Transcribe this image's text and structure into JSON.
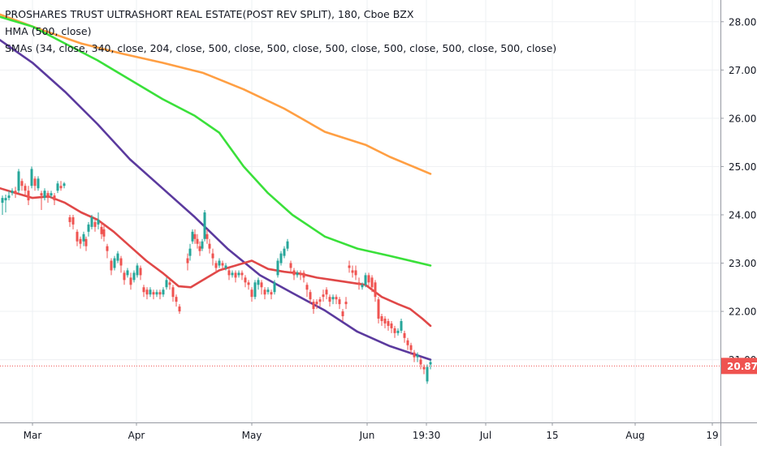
{
  "chart_data": {
    "type": "candlestick",
    "title": "PROSHARES TRUST ULTRASHORT REAL ESTATE(POST REV SPLIT), 180, Cboe BZX",
    "indicator_labels": [
      "HMA (500, close)",
      "SMAs (34, close, 340, close, 204, close, 500, close, 500, close, 500, close, 500, close, 500, close, 500, close)"
    ],
    "y_ticks": [
      "28.00",
      "27.00",
      "26.00",
      "25.00",
      "24.00",
      "23.00",
      "22.00",
      "21.00"
    ],
    "ylim": [
      19.7,
      28.45
    ],
    "x_ticks": [
      {
        "label": "Mar",
        "t": 40
      },
      {
        "label": "Apr",
        "t": 168
      },
      {
        "label": "May",
        "t": 310
      },
      {
        "label": "Jun",
        "t": 452
      },
      {
        "label": "19:30",
        "t": 525
      },
      {
        "label": "Jul",
        "t": 598
      },
      {
        "label": "15",
        "t": 680
      },
      {
        "label": "Aug",
        "t": 782
      },
      {
        "label": "19",
        "t": 877
      }
    ],
    "last_price": 20.87,
    "last_price_label": "20.87",
    "colors": {
      "up": "#26a69a",
      "down": "#ef5350",
      "hma": "#5b3a9e",
      "sma_orange": "#ff9f43",
      "sma_green": "#3ae03a",
      "sma_red": "#e04848",
      "price_line": "#ef5350",
      "grid": "#eef0f3",
      "axis_text": "#131722"
    },
    "series": [
      {
        "kind": "line",
        "color_key": "sma_orange",
        "points": [
          [
            0,
            28.15
          ],
          [
            50,
            27.84
          ],
          [
            100,
            27.55
          ],
          [
            150,
            27.34
          ],
          [
            200,
            27.15
          ],
          [
            250,
            26.94
          ],
          [
            300,
            26.6
          ],
          [
            350,
            26.2
          ],
          [
            400,
            25.72
          ],
          [
            450,
            25.45
          ],
          [
            480,
            25.2
          ],
          [
            530,
            24.85
          ]
        ]
      },
      {
        "kind": "line",
        "color_key": "sma_green",
        "points": [
          [
            0,
            28.1
          ],
          [
            40,
            27.9
          ],
          [
            80,
            27.55
          ],
          [
            120,
            27.2
          ],
          [
            160,
            26.8
          ],
          [
            200,
            26.4
          ],
          [
            240,
            26.05
          ],
          [
            270,
            25.7
          ],
          [
            300,
            25.0
          ],
          [
            330,
            24.45
          ],
          [
            360,
            24.0
          ],
          [
            400,
            23.55
          ],
          [
            440,
            23.3
          ],
          [
            480,
            23.15
          ],
          [
            530,
            22.95
          ]
        ]
      },
      {
        "kind": "line",
        "color_key": "hma",
        "points": [
          [
            0,
            27.62
          ],
          [
            40,
            27.15
          ],
          [
            80,
            26.55
          ],
          [
            120,
            25.88
          ],
          [
            160,
            25.15
          ],
          [
            200,
            24.55
          ],
          [
            240,
            23.95
          ],
          [
            280,
            23.3
          ],
          [
            320,
            22.75
          ],
          [
            360,
            22.38
          ],
          [
            400,
            22.02
          ],
          [
            440,
            21.58
          ],
          [
            480,
            21.28
          ],
          [
            530,
            21.0
          ]
        ]
      },
      {
        "kind": "line",
        "color_key": "sma_red",
        "points": [
          [
            0,
            24.55
          ],
          [
            20,
            24.45
          ],
          [
            40,
            24.35
          ],
          [
            60,
            24.38
          ],
          [
            80,
            24.25
          ],
          [
            100,
            24.05
          ],
          [
            120,
            23.9
          ],
          [
            140,
            23.65
          ],
          [
            160,
            23.35
          ],
          [
            180,
            23.05
          ],
          [
            200,
            22.8
          ],
          [
            220,
            22.52
          ],
          [
            235,
            22.5
          ],
          [
            250,
            22.65
          ],
          [
            270,
            22.85
          ],
          [
            290,
            22.95
          ],
          [
            310,
            23.05
          ],
          [
            330,
            22.88
          ],
          [
            350,
            22.82
          ],
          [
            370,
            22.78
          ],
          [
            390,
            22.7
          ],
          [
            410,
            22.65
          ],
          [
            430,
            22.6
          ],
          [
            450,
            22.55
          ],
          [
            470,
            22.3
          ],
          [
            490,
            22.15
          ],
          [
            505,
            22.05
          ],
          [
            520,
            21.85
          ],
          [
            530,
            21.7
          ]
        ]
      }
    ],
    "candles": [
      [
        3,
        24.25,
        24.35,
        24.0,
        24.4
      ],
      [
        7,
        24.3,
        24.35,
        24.05,
        24.42
      ],
      [
        11,
        24.35,
        24.4,
        24.3,
        24.5
      ],
      [
        15,
        24.45,
        24.5,
        24.4,
        24.55
      ],
      [
        19,
        24.5,
        24.45,
        24.35,
        24.58
      ],
      [
        23,
        24.5,
        24.9,
        24.45,
        24.95
      ],
      [
        27,
        24.7,
        24.6,
        24.5,
        24.75
      ],
      [
        31,
        24.6,
        24.5,
        24.4,
        24.65
      ],
      [
        35,
        24.5,
        24.3,
        24.2,
        24.6
      ],
      [
        39,
        24.6,
        24.95,
        24.55,
        25.0
      ],
      [
        43,
        24.75,
        24.6,
        24.5,
        24.8
      ],
      [
        47,
        24.55,
        24.75,
        24.5,
        24.8
      ],
      [
        51,
        24.45,
        24.4,
        24.1,
        24.5
      ],
      [
        55,
        24.35,
        24.5,
        24.3,
        24.55
      ],
      [
        59,
        24.45,
        24.35,
        24.25,
        24.5
      ],
      [
        63,
        24.4,
        24.45,
        24.35,
        24.5
      ],
      [
        67,
        24.4,
        24.3,
        24.2,
        24.45
      ],
      [
        71,
        24.5,
        24.65,
        24.45,
        24.7
      ],
      [
        75,
        24.6,
        24.55,
        24.5,
        24.7
      ],
      [
        79,
        24.6,
        24.65,
        24.55,
        24.68
      ],
      [
        86,
        23.95,
        23.85,
        23.75,
        24.0
      ],
      [
        90,
        23.95,
        23.8,
        23.7,
        24.0
      ],
      [
        95,
        23.65,
        23.45,
        23.35,
        23.7
      ],
      [
        99,
        23.5,
        23.4,
        23.3,
        23.55
      ],
      [
        103,
        23.45,
        23.6,
        23.35,
        23.65
      ],
      [
        106,
        23.5,
        23.35,
        23.25,
        23.55
      ],
      [
        109,
        23.65,
        23.8,
        23.55,
        23.85
      ],
      [
        113,
        23.75,
        23.95,
        23.7,
        24.0
      ],
      [
        117,
        23.85,
        23.75,
        23.65,
        23.9
      ],
      [
        121,
        23.8,
        23.9,
        23.7,
        24.05
      ],
      [
        125,
        23.75,
        23.6,
        23.5,
        23.85
      ],
      [
        128,
        23.7,
        23.55,
        23.45,
        23.8
      ],
      [
        132,
        23.35,
        23.25,
        23.1,
        23.4
      ],
      [
        137,
        23.05,
        22.85,
        22.75,
        23.1
      ],
      [
        141,
        22.9,
        23.1,
        22.85,
        23.15
      ],
      [
        145,
        23.05,
        23.2,
        23.0,
        23.25
      ],
      [
        149,
        23.1,
        22.95,
        22.8,
        23.15
      ],
      [
        153,
        22.8,
        22.65,
        22.55,
        22.85
      ],
      [
        157,
        22.75,
        22.85,
        22.7,
        22.9
      ],
      [
        161,
        22.7,
        22.55,
        22.45,
        22.8
      ],
      [
        165,
        22.65,
        22.8,
        22.6,
        22.85
      ],
      [
        169,
        22.75,
        22.95,
        22.7,
        23.0
      ],
      [
        173,
        22.9,
        22.75,
        22.65,
        22.95
      ],
      [
        177,
        22.5,
        22.4,
        22.3,
        22.55
      ],
      [
        181,
        22.45,
        22.35,
        22.25,
        22.5
      ],
      [
        185,
        22.35,
        22.45,
        22.3,
        22.5
      ],
      [
        189,
        22.4,
        22.35,
        22.25,
        22.45
      ],
      [
        193,
        22.35,
        22.4,
        22.3,
        22.45
      ],
      [
        197,
        22.4,
        22.35,
        22.25,
        22.45
      ],
      [
        201,
        22.35,
        22.45,
        22.3,
        22.5
      ],
      [
        205,
        22.5,
        22.65,
        22.45,
        22.7
      ],
      [
        209,
        22.6,
        22.55,
        22.45,
        22.65
      ],
      [
        213,
        22.5,
        22.3,
        22.2,
        22.55
      ],
      [
        217,
        22.3,
        22.2,
        22.1,
        22.35
      ],
      [
        221,
        22.1,
        22.0,
        21.95,
        22.15
      ],
      [
        231,
        23.1,
        23.0,
        22.85,
        23.2
      ],
      [
        234,
        23.15,
        23.3,
        23.05,
        23.4
      ],
      [
        237,
        23.45,
        23.65,
        23.4,
        23.7
      ],
      [
        240,
        23.6,
        23.5,
        23.4,
        23.7
      ],
      [
        243,
        23.5,
        23.4,
        23.3,
        23.6
      ],
      [
        246,
        23.35,
        23.25,
        23.15,
        23.45
      ],
      [
        249,
        23.3,
        23.45,
        23.25,
        23.5
      ],
      [
        252,
        23.5,
        24.05,
        23.45,
        24.1
      ],
      [
        255,
        23.6,
        23.5,
        23.4,
        23.7
      ],
      [
        258,
        23.4,
        23.3,
        23.2,
        23.5
      ],
      [
        262,
        23.2,
        23.1,
        22.95,
        23.3
      ],
      [
        266,
        23.0,
        22.9,
        22.8,
        23.05
      ],
      [
        270,
        22.95,
        23.05,
        22.9,
        23.1
      ],
      [
        274,
        23.0,
        22.95,
        22.85,
        23.05
      ],
      [
        278,
        22.9,
        22.95,
        22.85,
        23.0
      ],
      [
        282,
        22.85,
        22.75,
        22.65,
        22.9
      ],
      [
        286,
        22.75,
        22.8,
        22.7,
        22.85
      ],
      [
        290,
        22.8,
        22.7,
        22.6,
        22.85
      ],
      [
        294,
        22.75,
        22.8,
        22.7,
        22.85
      ],
      [
        298,
        22.8,
        22.75,
        22.65,
        22.85
      ],
      [
        302,
        22.7,
        22.6,
        22.5,
        22.75
      ],
      [
        306,
        22.6,
        22.55,
        22.45,
        22.65
      ],
      [
        310,
        22.45,
        22.3,
        22.2,
        22.5
      ],
      [
        314,
        22.3,
        22.6,
        22.25,
        22.65
      ],
      [
        318,
        22.55,
        22.65,
        22.45,
        22.7
      ],
      [
        322,
        22.6,
        22.5,
        22.35,
        22.65
      ],
      [
        326,
        22.45,
        22.35,
        22.25,
        22.5
      ],
      [
        330,
        22.4,
        22.45,
        22.35,
        22.5
      ],
      [
        334,
        22.4,
        22.35,
        22.25,
        22.45
      ],
      [
        338,
        22.4,
        22.6,
        22.35,
        22.65
      ],
      [
        342,
        22.75,
        23.05,
        22.7,
        23.1
      ],
      [
        346,
        23.0,
        23.2,
        22.95,
        23.25
      ],
      [
        350,
        23.15,
        23.3,
        23.1,
        23.35
      ],
      [
        354,
        23.3,
        23.45,
        23.25,
        23.5
      ],
      [
        358,
        23.0,
        22.9,
        22.8,
        23.05
      ],
      [
        362,
        22.85,
        22.75,
        22.65,
        22.9
      ],
      [
        366,
        22.75,
        22.8,
        22.7,
        22.85
      ],
      [
        370,
        22.8,
        22.75,
        22.65,
        22.85
      ],
      [
        374,
        22.8,
        22.7,
        22.6,
        22.85
      ],
      [
        378,
        22.55,
        22.45,
        22.3,
        22.6
      ],
      [
        382,
        22.4,
        22.25,
        22.15,
        22.45
      ],
      [
        386,
        22.2,
        22.05,
        21.95,
        22.25
      ],
      [
        390,
        22.2,
        22.15,
        22.05,
        22.25
      ],
      [
        394,
        22.25,
        22.2,
        22.1,
        22.3
      ],
      [
        398,
        22.35,
        22.3,
        22.2,
        22.45
      ],
      [
        402,
        22.45,
        22.35,
        22.25,
        22.5
      ],
      [
        406,
        22.3,
        22.2,
        22.1,
        22.35
      ],
      [
        410,
        22.25,
        22.3,
        22.15,
        22.35
      ],
      [
        414,
        22.3,
        22.25,
        22.15,
        22.35
      ],
      [
        418,
        22.25,
        22.15,
        22.05,
        22.3
      ],
      [
        422,
        22.0,
        21.9,
        21.8,
        22.05
      ],
      [
        426,
        22.2,
        22.15,
        22.05,
        22.3
      ],
      [
        430,
        22.95,
        22.9,
        22.8,
        23.05
      ],
      [
        434,
        22.85,
        22.8,
        22.7,
        22.95
      ],
      [
        438,
        22.85,
        22.75,
        22.65,
        22.95
      ],
      [
        442,
        22.6,
        22.55,
        22.45,
        22.7
      ],
      [
        446,
        22.5,
        22.55,
        22.45,
        22.6
      ],
      [
        450,
        22.55,
        22.75,
        22.5,
        22.8
      ],
      [
        454,
        22.75,
        22.6,
        22.5,
        22.8
      ],
      [
        458,
        22.7,
        22.5,
        22.4,
        22.75
      ],
      [
        462,
        22.6,
        22.3,
        22.2,
        22.65
      ],
      [
        466,
        22.25,
        21.85,
        21.75,
        22.3
      ],
      [
        470,
        21.9,
        21.8,
        21.7,
        21.95
      ],
      [
        474,
        21.85,
        21.75,
        21.65,
        21.9
      ],
      [
        478,
        21.8,
        21.7,
        21.6,
        21.85
      ],
      [
        482,
        21.75,
        21.65,
        21.55,
        21.8
      ],
      [
        486,
        21.65,
        21.55,
        21.45,
        21.7
      ],
      [
        490,
        21.55,
        21.6,
        21.5,
        21.65
      ],
      [
        494,
        21.6,
        21.8,
        21.55,
        21.85
      ],
      [
        498,
        21.55,
        21.45,
        21.35,
        21.6
      ],
      [
        502,
        21.4,
        21.3,
        21.2,
        21.45
      ],
      [
        506,
        21.3,
        21.2,
        21.1,
        21.35
      ],
      [
        510,
        21.15,
        21.05,
        20.95,
        21.2
      ],
      [
        514,
        21.05,
        21.1,
        20.95,
        21.15
      ],
      [
        518,
        21.0,
        20.9,
        20.8,
        21.05
      ],
      [
        522,
        20.85,
        20.8,
        20.7,
        20.9
      ],
      [
        526,
        20.55,
        20.85,
        20.5,
        20.9
      ],
      [
        530,
        20.9,
        20.95,
        20.8,
        21.0
      ]
    ]
  }
}
